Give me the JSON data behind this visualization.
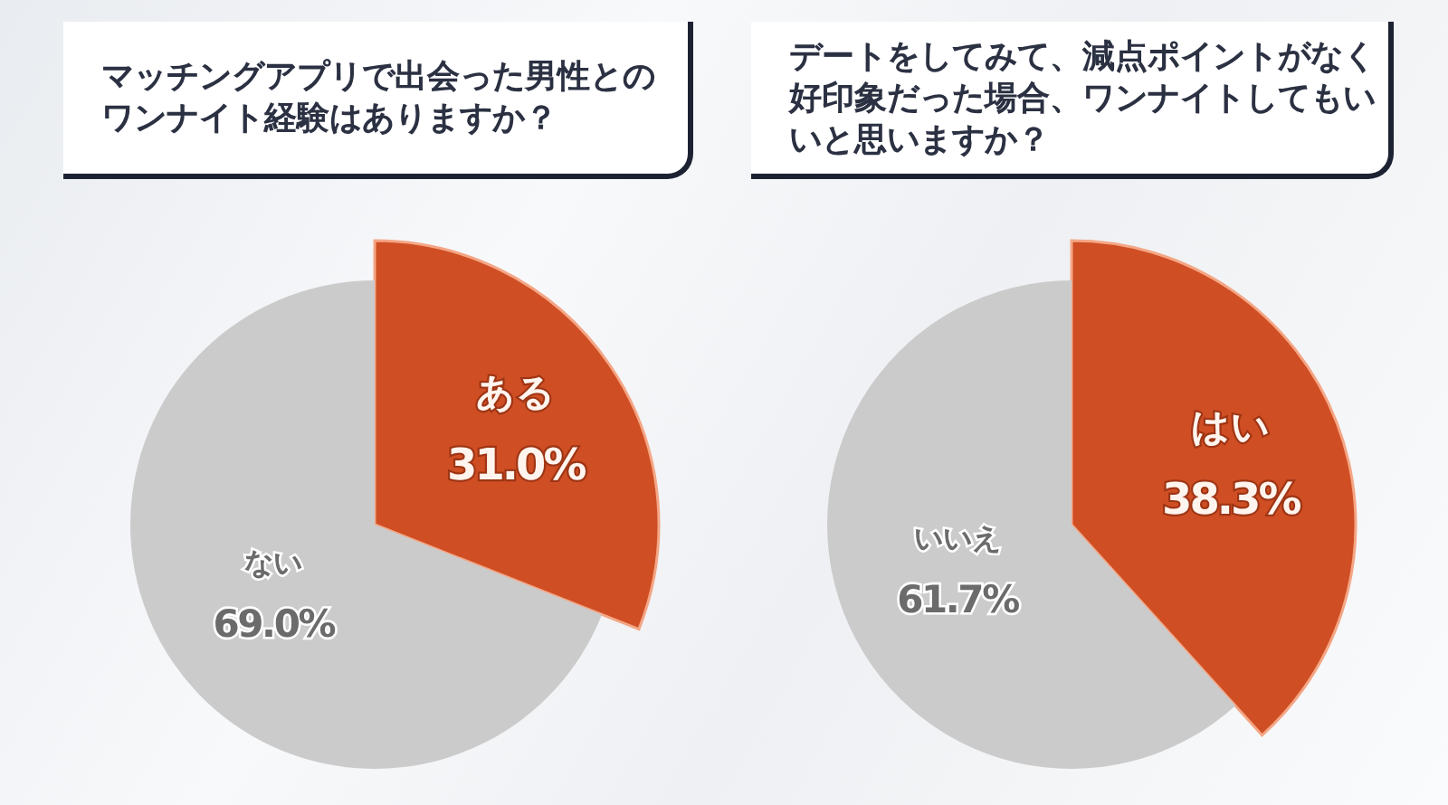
{
  "chart_data": [
    {
      "type": "pie",
      "title": "マッチングアプリで出会った男性とのワンナイト経験はありますか？",
      "categories": [
        "ある",
        "ない"
      ],
      "values": [
        31.0,
        69.0
      ],
      "colors": [
        "#cf4e24",
        "#cbcbcb"
      ],
      "value_labels": [
        "31.0%",
        "69.0%"
      ]
    },
    {
      "type": "pie",
      "title": "デートをしてみて、減点ポイントがなく好印象だった場合、ワンナイトしてもいいと思いますか？",
      "categories": [
        "はい",
        "いいえ"
      ],
      "values": [
        38.3,
        61.7
      ],
      "colors": [
        "#cf4e24",
        "#cbcbcb"
      ],
      "value_labels": [
        "38.3%",
        "61.7%"
      ]
    }
  ]
}
